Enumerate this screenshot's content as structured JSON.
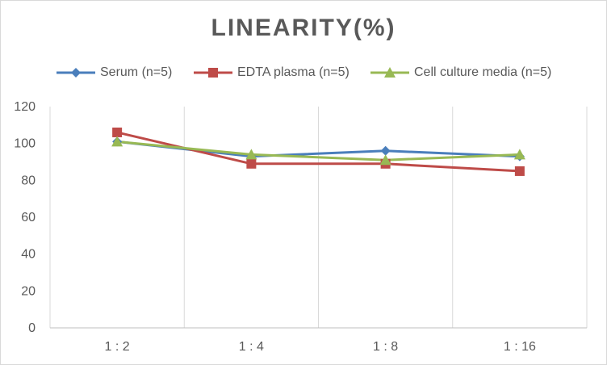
{
  "chart_data": {
    "type": "line",
    "title": "LINEARITY(%)",
    "categories": [
      "1:2",
      "1:4",
      "1:8",
      "1:16"
    ],
    "ylim": [
      0,
      120
    ],
    "yticks": [
      0,
      20,
      40,
      60,
      80,
      100,
      120
    ],
    "grid": "vertical",
    "legend_position": "top",
    "series": [
      {
        "name": "Serum (n=5)",
        "values": [
          101,
          93,
          96,
          93
        ],
        "color": "#4a7ebb",
        "marker": "diamond"
      },
      {
        "name": "EDTA plasma (n=5)",
        "values": [
          106,
          89,
          89,
          85
        ],
        "color": "#be4b48",
        "marker": "square"
      },
      {
        "name": "Cell culture media (n=5)",
        "values": [
          101,
          94,
          91,
          94
        ],
        "color": "#98b954",
        "marker": "triangle"
      }
    ]
  }
}
